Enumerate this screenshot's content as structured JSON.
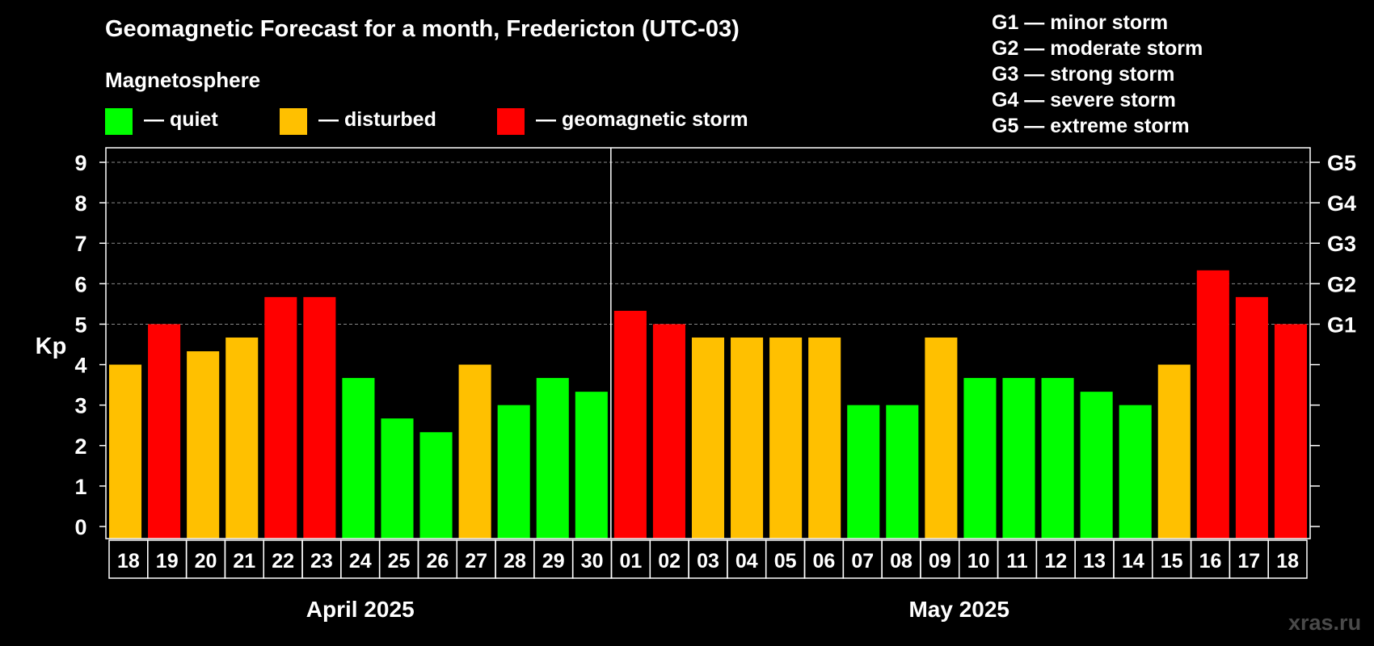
{
  "chart_data": {
    "type": "bar",
    "title": "Geomagnetic Forecast for a month, Fredericton (UTC-03)",
    "ylabel": "Kp",
    "ylim": [
      0,
      9
    ],
    "yticks": [
      "0",
      "1",
      "2",
      "3",
      "4",
      "5",
      "6",
      "7",
      "8",
      "9"
    ],
    "right_axis_labels": [
      {
        "value": 5,
        "label": "G1"
      },
      {
        "value": 6,
        "label": "G2"
      },
      {
        "value": 7,
        "label": "G3"
      },
      {
        "value": 8,
        "label": "G4"
      },
      {
        "value": 9,
        "label": "G5"
      }
    ],
    "grid": true,
    "months": [
      {
        "label": "April 2025",
        "days": [
          "18",
          "19",
          "20",
          "21",
          "22",
          "23",
          "24",
          "25",
          "26",
          "27",
          "28",
          "29",
          "30"
        ],
        "values": [
          4.0,
          5.0,
          4.33,
          4.67,
          5.67,
          5.67,
          3.67,
          2.67,
          2.33,
          4.0,
          3.0,
          3.67,
          3.33
        ],
        "levels": [
          "disturbed",
          "storm",
          "disturbed",
          "disturbed",
          "storm",
          "storm",
          "quiet",
          "quiet",
          "quiet",
          "disturbed",
          "quiet",
          "quiet",
          "quiet"
        ]
      },
      {
        "label": "May 2025",
        "days": [
          "01",
          "02",
          "03",
          "04",
          "05",
          "06",
          "07",
          "08",
          "09",
          "10",
          "11",
          "12",
          "13",
          "14",
          "15",
          "16",
          "17",
          "18"
        ],
        "values": [
          5.33,
          5.0,
          4.67,
          4.67,
          4.67,
          4.67,
          3.0,
          3.0,
          4.67,
          3.67,
          3.67,
          3.67,
          3.33,
          3.0,
          4.0,
          6.33,
          5.67,
          5.0
        ],
        "levels": [
          "storm",
          "storm",
          "disturbed",
          "disturbed",
          "disturbed",
          "disturbed",
          "quiet",
          "quiet",
          "disturbed",
          "quiet",
          "quiet",
          "quiet",
          "quiet",
          "quiet",
          "disturbed",
          "storm",
          "storm",
          "storm"
        ]
      }
    ]
  },
  "legend": {
    "title": "Magnetosphere",
    "items": [
      {
        "key": "quiet",
        "label": "— quiet",
        "color": "#00ff00"
      },
      {
        "key": "disturbed",
        "label": "— disturbed",
        "color": "#ffc000"
      },
      {
        "key": "storm",
        "label": "— geomagnetic storm",
        "color": "#ff0000"
      }
    ]
  },
  "g_scale": [
    "G1 — minor storm",
    "G2 — moderate storm",
    "G3 — strong storm",
    "G4 — severe storm",
    "G5 — extreme storm"
  ],
  "watermark": "xras.ru"
}
